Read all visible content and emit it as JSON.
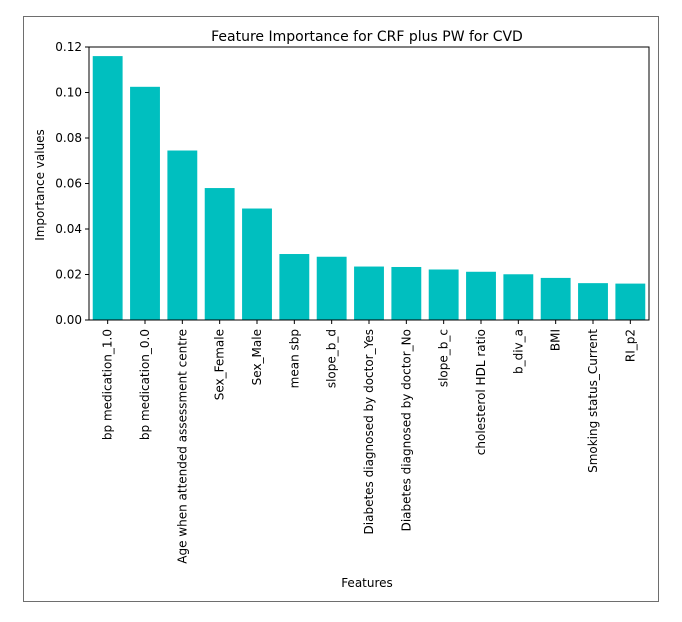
{
  "chart_data": {
    "type": "bar",
    "title": "Feature Importance for CRF plus PW for CVD",
    "xlabel": "Features",
    "ylabel": "Importance values",
    "ylim": [
      0,
      0.12
    ],
    "yticks": [
      "0.00",
      "0.02",
      "0.04",
      "0.06",
      "0.08",
      "0.10",
      "0.12"
    ],
    "grid": false,
    "categories": [
      "bp medication_1.0",
      "bp medication_0.0",
      "Age when attended assessment centre",
      "Sex_Female",
      "Sex_Male",
      "mean sbp",
      "slope_b_d",
      "Diabetes diagnosed by doctor_Yes",
      "Diabetes diagnosed by doctor_No",
      "slope_b_c",
      "cholesterol HDL ratio",
      "b_div_a",
      "BMI",
      "Smoking status_Current",
      "RI_p2"
    ],
    "values": [
      0.116,
      0.1025,
      0.0745,
      0.058,
      0.049,
      0.029,
      0.0278,
      0.0235,
      0.0233,
      0.0222,
      0.0212,
      0.0201,
      0.0185,
      0.0162,
      0.016
    ],
    "bar_color": "#00bfbf"
  }
}
